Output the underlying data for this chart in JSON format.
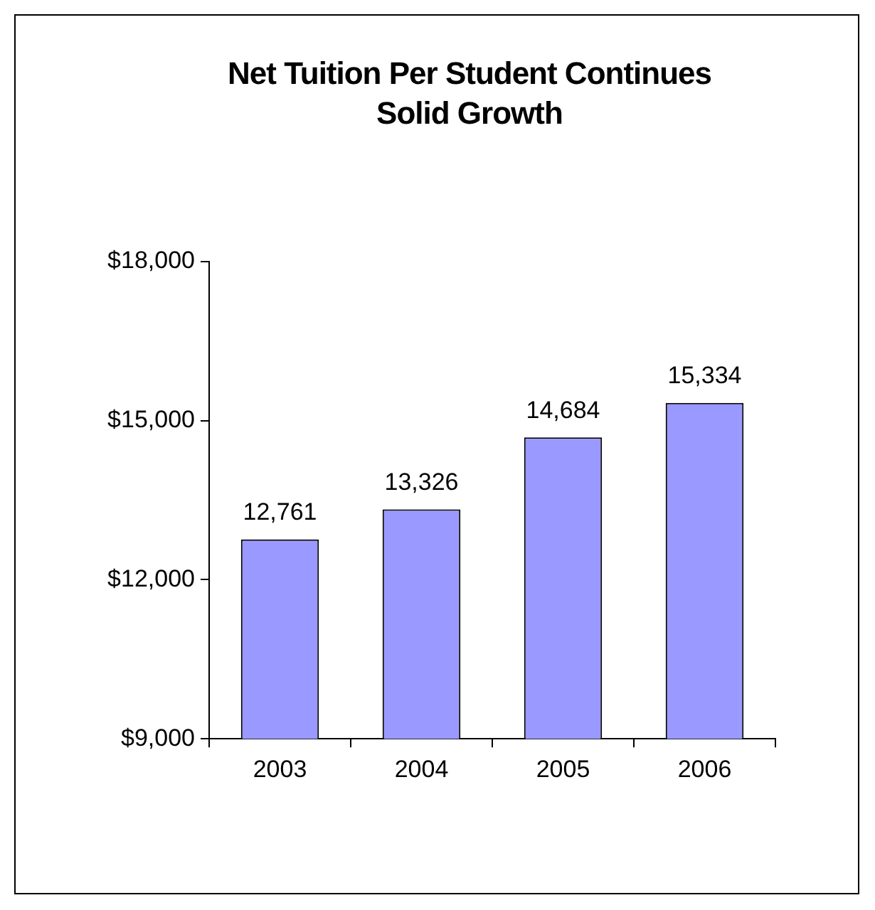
{
  "chart_data": {
    "type": "bar",
    "title": "Net Tuition Per Student Continues Solid Growth",
    "categories": [
      "2003",
      "2004",
      "2005",
      "2006"
    ],
    "values": [
      12761,
      13326,
      14684,
      15334
    ],
    "color": "#9999ff",
    "ylim": [
      9000,
      18000
    ],
    "yticks": [
      {
        "value": 9000,
        "label": "$9,000"
      },
      {
        "value": 12000,
        "label": "$12,000"
      },
      {
        "value": 15000,
        "label": "$15,000"
      },
      {
        "value": 18000,
        "label": "$18,000"
      }
    ],
    "value_labels": [
      "12,761",
      "13,326",
      "14,684",
      "15,334"
    ],
    "grid": false,
    "legend": false
  }
}
